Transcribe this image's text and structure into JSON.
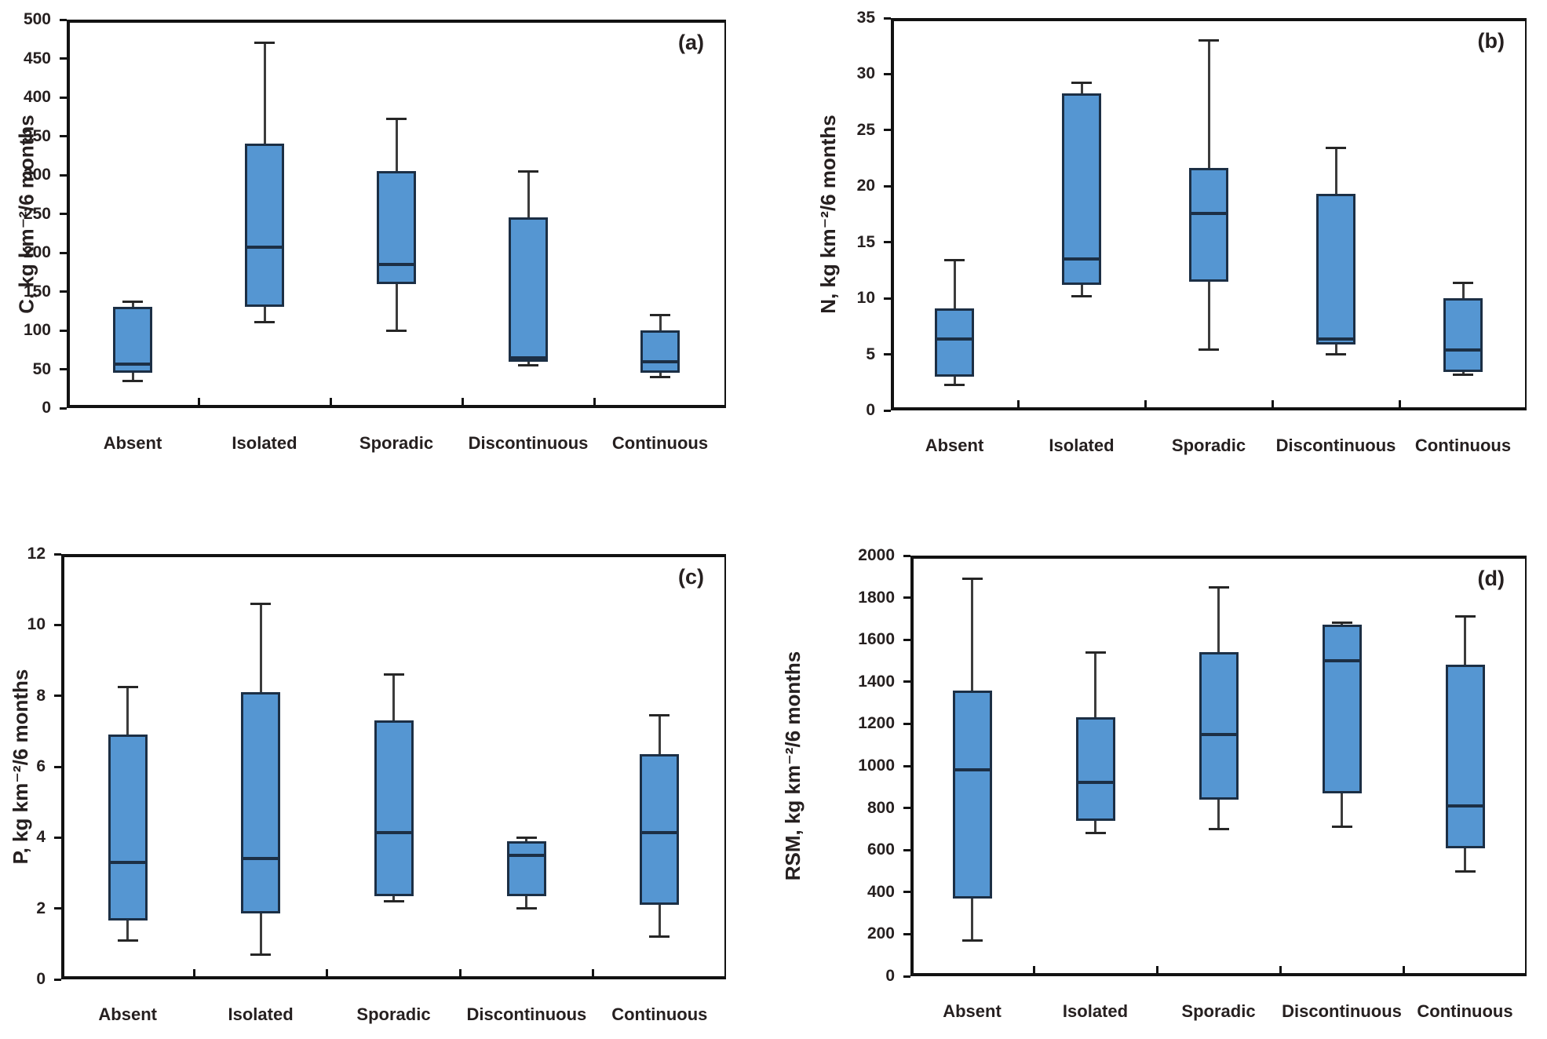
{
  "colors": {
    "box_fill": "#5596d2",
    "box_border": "#1c2f45",
    "whisker": "#3c3c3c",
    "whisker_cap": "#262626",
    "axis": "#121212",
    "text": "#262020"
  },
  "chart_data": [
    {
      "type": "box",
      "panel": "a",
      "panel_letter": "(a)",
      "ylabel": "C, kg km⁻²/6 months",
      "ylim": [
        0,
        500
      ],
      "ytick_step": 50,
      "grid": false,
      "categories": [
        "Absent",
        "Isolated",
        "Sporadic",
        "Discontinuous",
        "Continuous"
      ],
      "series": [
        {
          "category": "Absent",
          "whisker_low": 35,
          "q1": 45,
          "median": 57,
          "q3": 130,
          "whisker_high": 137
        },
        {
          "category": "Isolated",
          "whisker_low": 111,
          "q1": 130,
          "median": 207,
          "q3": 340,
          "whisker_high": 470
        },
        {
          "category": "Sporadic",
          "whisker_low": 100,
          "q1": 160,
          "median": 185,
          "q3": 305,
          "whisker_high": 372
        },
        {
          "category": "Discontinuous",
          "whisker_low": 55,
          "q1": 60,
          "median": 65,
          "q3": 245,
          "whisker_high": 305
        },
        {
          "category": "Continuous",
          "whisker_low": 40,
          "q1": 45,
          "median": 60,
          "q3": 100,
          "whisker_high": 120
        }
      ]
    },
    {
      "type": "box",
      "panel": "b",
      "panel_letter": "(b)",
      "ylabel": "N, kg km⁻²/6 months",
      "ylim": [
        0,
        35
      ],
      "ytick_step": 5,
      "grid": false,
      "categories": [
        "Absent",
        "Isolated",
        "Sporadic",
        "Discontinuous",
        "Continuous"
      ],
      "series": [
        {
          "category": "Absent",
          "whisker_low": 2.3,
          "q1": 3.0,
          "median": 6.4,
          "q3": 9.1,
          "whisker_high": 13.4
        },
        {
          "category": "Isolated",
          "whisker_low": 10.2,
          "q1": 11.2,
          "median": 13.5,
          "q3": 28.3,
          "whisker_high": 29.2
        },
        {
          "category": "Sporadic",
          "whisker_low": 5.4,
          "q1": 11.5,
          "median": 17.6,
          "q3": 21.6,
          "whisker_high": 33.0
        },
        {
          "category": "Discontinuous",
          "whisker_low": 5.0,
          "q1": 5.9,
          "median": 6.4,
          "q3": 19.3,
          "whisker_high": 23.4
        },
        {
          "category": "Continuous",
          "whisker_low": 3.2,
          "q1": 3.4,
          "median": 5.4,
          "q3": 10.0,
          "whisker_high": 11.4
        }
      ]
    },
    {
      "type": "box",
      "panel": "c",
      "panel_letter": "(c)",
      "ylabel": "P, kg km⁻²/6 months",
      "ylim": [
        0,
        12
      ],
      "ytick_step": 2,
      "grid": false,
      "categories": [
        "Absent",
        "Isolated",
        "Sporadic",
        "Discontinuous",
        "Continuous"
      ],
      "series": [
        {
          "category": "Absent",
          "whisker_low": 1.1,
          "q1": 1.65,
          "median": 3.3,
          "q3": 6.9,
          "whisker_high": 8.25
        },
        {
          "category": "Isolated",
          "whisker_low": 0.7,
          "q1": 1.85,
          "median": 3.4,
          "q3": 8.1,
          "whisker_high": 10.6
        },
        {
          "category": "Sporadic",
          "whisker_low": 2.2,
          "q1": 2.35,
          "median": 4.15,
          "q3": 7.3,
          "whisker_high": 8.6
        },
        {
          "category": "Discontinuous",
          "whisker_low": 2.0,
          "q1": 2.35,
          "median": 3.5,
          "q3": 3.9,
          "whisker_high": 4.0
        },
        {
          "category": "Continuous",
          "whisker_low": 1.2,
          "q1": 2.1,
          "median": 4.15,
          "q3": 6.35,
          "whisker_high": 7.45
        }
      ]
    },
    {
      "type": "box",
      "panel": "d",
      "panel_letter": "(d)",
      "ylabel": "RSM, kg km⁻²/6 months",
      "ylim": [
        0,
        2000
      ],
      "ytick_step": 200,
      "grid": false,
      "categories": [
        "Absent",
        "Isolated",
        "Sporadic",
        "Discontinuous",
        "Continuous"
      ],
      "series": [
        {
          "category": "Absent",
          "whisker_low": 170,
          "q1": 370,
          "median": 980,
          "q3": 1360,
          "whisker_high": 1890
        },
        {
          "category": "Isolated",
          "whisker_low": 680,
          "q1": 740,
          "median": 920,
          "q3": 1230,
          "whisker_high": 1540
        },
        {
          "category": "Sporadic",
          "whisker_low": 700,
          "q1": 840,
          "median": 1150,
          "q3": 1540,
          "whisker_high": 1850
        },
        {
          "category": "Discontinuous",
          "whisker_low": 710,
          "q1": 870,
          "median": 1500,
          "q3": 1670,
          "whisker_high": 1680
        },
        {
          "category": "Continuous",
          "whisker_low": 500,
          "q1": 610,
          "median": 810,
          "q3": 1480,
          "whisker_high": 1710
        }
      ]
    }
  ]
}
